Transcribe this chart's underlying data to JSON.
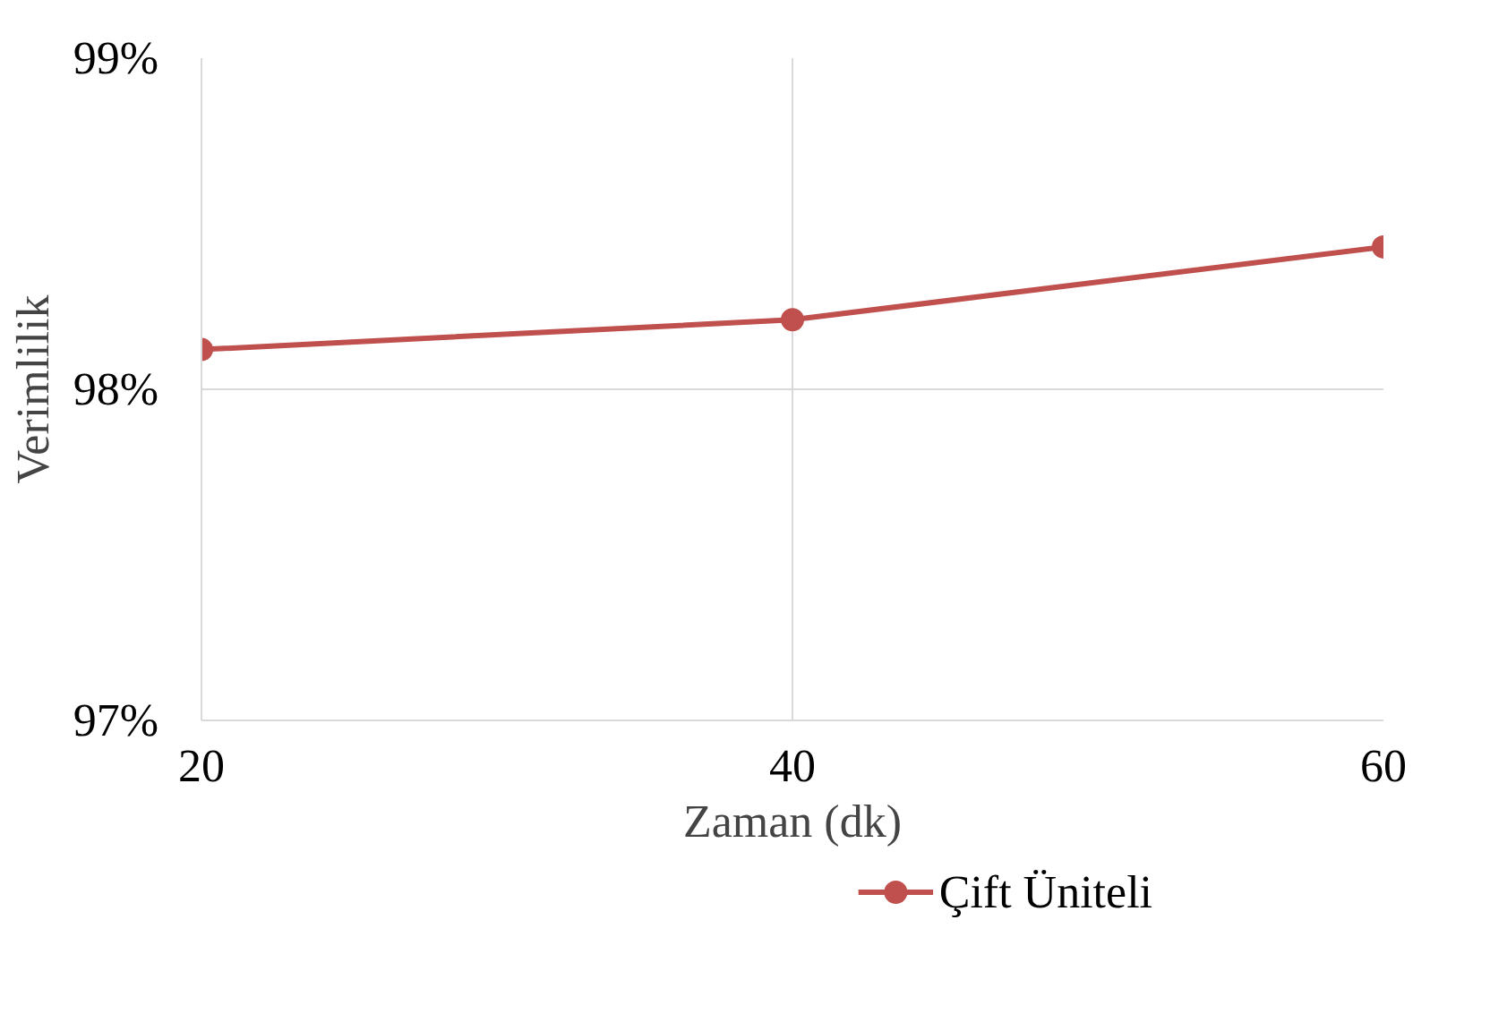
{
  "chart_data": {
    "type": "line",
    "xlabel": "Zaman (dk)",
    "ylabel": "Verimlilik",
    "x": [
      20,
      40,
      60
    ],
    "series": [
      {
        "name": "Çift Üniteli",
        "color": "#c0504d",
        "values": [
          98.12,
          98.21,
          98.43
        ]
      }
    ],
    "xlim": [
      20,
      60
    ],
    "xticks": [
      20,
      40,
      60
    ],
    "ylim": [
      97,
      99
    ],
    "yticks": [
      {
        "value": 97,
        "label": "97%"
      },
      {
        "value": 98,
        "label": "98%"
      },
      {
        "value": 99,
        "label": "99%"
      }
    ],
    "grid": true,
    "legend": "bottom",
    "marker": "circle",
    "line_style": "solid"
  }
}
